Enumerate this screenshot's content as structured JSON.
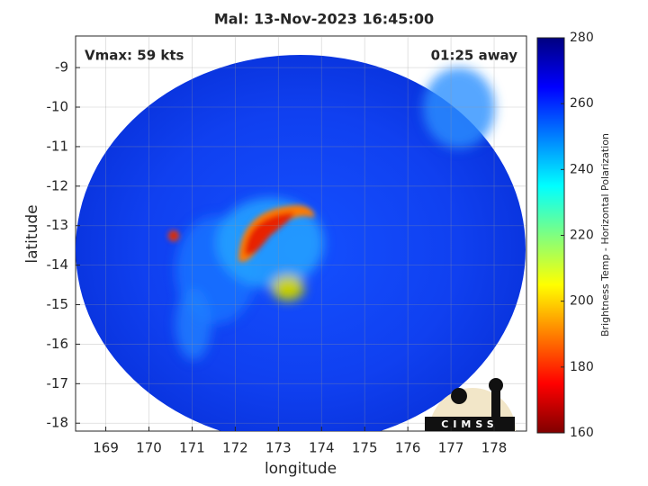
{
  "chart_data": {
    "type": "image",
    "title": "Mal: 13-Nov-2023 16:45:00",
    "annotations": [
      "Vmax: 59 kts",
      "01:25 away"
    ],
    "xlabel": "longitude",
    "ylabel": "latitude",
    "xlim": [
      168.3,
      178.75
    ],
    "ylim": [
      -18.2,
      -8.2
    ],
    "xticks": [
      169,
      170,
      171,
      172,
      173,
      174,
      175,
      176,
      177,
      178
    ],
    "yticks": [
      -18,
      -17,
      -16,
      -15,
      -14,
      -13,
      -12,
      -11,
      -10,
      -9
    ],
    "grid": true,
    "colormap": "jet",
    "colorbar": {
      "label": "Brightness Temp - Horizontal Polarization",
      "clim": [
        160,
        280
      ],
      "ticks": [
        160,
        180,
        200,
        220,
        240,
        260,
        280
      ]
    },
    "logo": "CIMSS"
  }
}
